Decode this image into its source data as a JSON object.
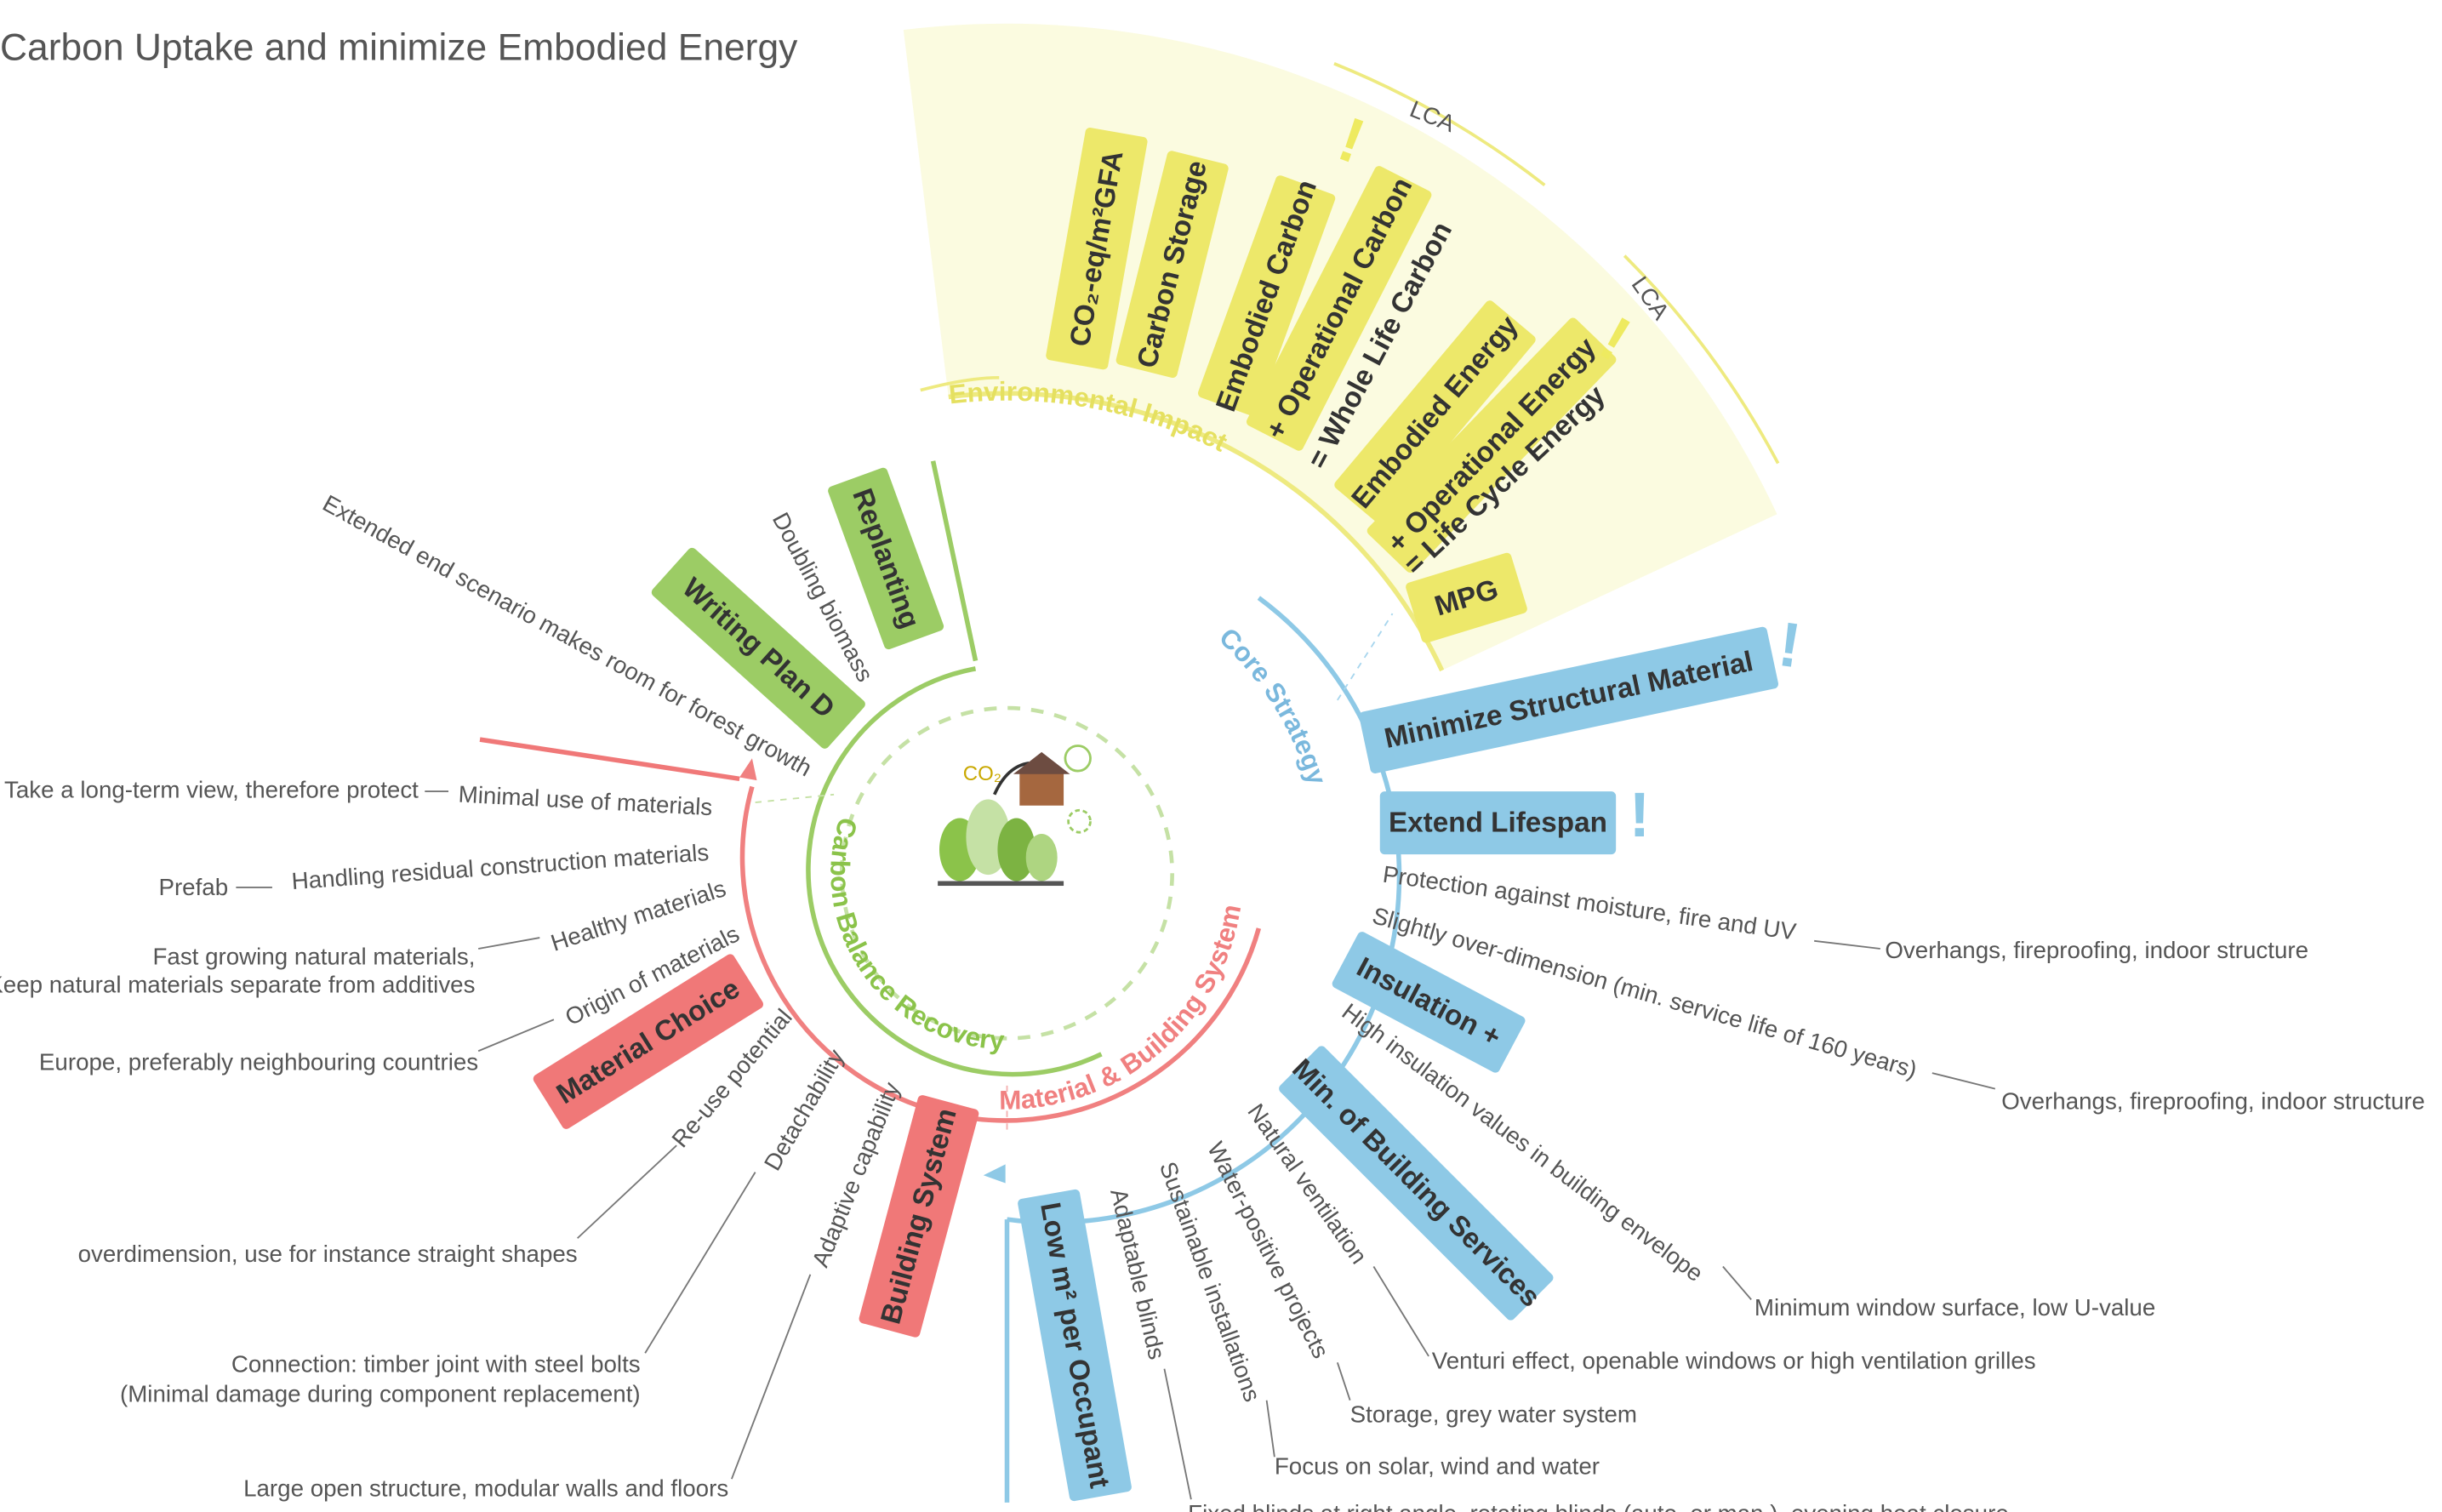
{
  "title": "Carbon Uptake and minimize Embodied Energy",
  "center": {
    "label": "Carbon Balance Recovery",
    "co2": "CO₂"
  },
  "alert": "!",
  "environmental_impact": {
    "label": "Environmental Impact",
    "lca": "LCA",
    "items": [
      "CO₂-eq/m²GFA",
      "Carbon Storage",
      "Embodied Carbon",
      "+ Operational Carbon",
      "= Whole Life Carbon",
      "Embodied Energy",
      "+ Operational Energy",
      "= Life Cycle Energy",
      "MPG"
    ]
  },
  "carbon_balance": {
    "items": [
      {
        "label": "Replanting",
        "detail": "Doubling biomass"
      },
      {
        "label": "Writing Plan D",
        "detail": "Extended end scenario makes room for forest growth"
      }
    ]
  },
  "core_strategy": {
    "label": "Core Strategy",
    "items": [
      {
        "label": "Minimize Structural Material"
      },
      {
        "label": "Extend Lifespan",
        "details": [
          {
            "text": "Protection against moisture, fire and UV",
            "note": [
              "Overhangs, fireproofing, indoor structure"
            ]
          },
          {
            "text": "Slightly over-dimension (min. service life of 160 years)",
            "note": [
              "Overhangs, fireproofing, indoor structure"
            ]
          }
        ]
      },
      {
        "label": "Insulation +",
        "details": [
          {
            "text": "High insulation values in building envelope",
            "note": [
              "Minimum window surface, low  U-value"
            ]
          }
        ]
      },
      {
        "label": "Min. of Building Services",
        "details": [
          {
            "text": "Natural ventilation",
            "note": [
              "Venturi effect, openable windows or high ventilation grilles"
            ]
          },
          {
            "text": "Water-positive projects",
            "note": [
              "Storage, grey water system"
            ]
          },
          {
            "text": "Sustainable installations",
            "note": [
              "Focus on solar, wind and water"
            ]
          },
          {
            "text": "Adaptable blinds",
            "note": [
              "Fixed blinds at right angle, rotating blinds (auto. or man.), evening heat closure"
            ]
          }
        ]
      },
      {
        "label": "Low m² per Occupant"
      }
    ]
  },
  "material_building_system": {
    "label": "Material & Building System",
    "items": [
      {
        "label": "Material Choice",
        "details": [
          {
            "text": "Minimal use of materials",
            "note": [
              "Take a long-term view, therefore protect"
            ]
          },
          {
            "text": "Handling residual construction materials",
            "note": [
              "Prefab"
            ]
          },
          {
            "text": "Healthy materials",
            "note": [
              "Fast growing natural materials,",
              "Keep natural materials separate from additives"
            ]
          },
          {
            "text": "Origin of materials",
            "note": [
              "Europe, preferably neighbouring countries"
            ]
          }
        ]
      },
      {
        "label": "Building System",
        "details": [
          {
            "text": "Re-use potential",
            "note": [
              "overdimension, use for instance straight shapes"
            ]
          },
          {
            "text": "Detachability",
            "note": [
              "Connection: timber joint with steel bolts",
              "(Minimal damage during component replacement)"
            ]
          },
          {
            "text": "Adaptive capability",
            "note": [
              "Large open structure, modular walls and floors"
            ]
          }
        ]
      }
    ]
  }
}
